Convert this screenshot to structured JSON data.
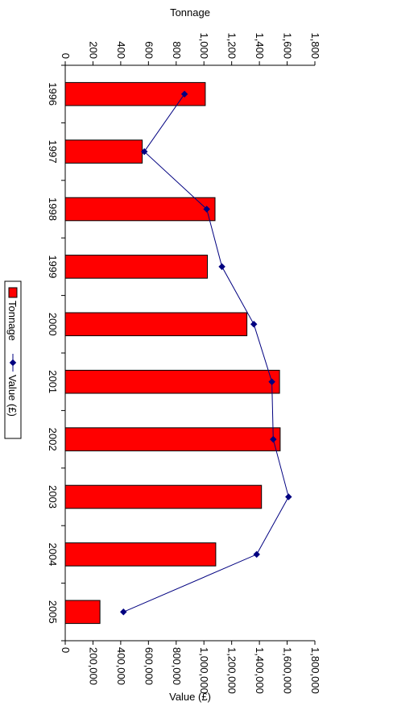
{
  "chart_data": {
    "type": "bar",
    "categories": [
      "1996",
      "1997",
      "1998",
      "1999",
      "2000",
      "2001",
      "2002",
      "2003",
      "2004",
      "2005"
    ],
    "series": [
      {
        "name": "Tonnage",
        "kind": "bar",
        "axis": "left",
        "color": "#ff0000",
        "values": [
          1010,
          555,
          1080,
          1025,
          1310,
          1545,
          1550,
          1415,
          1085,
          250
        ]
      },
      {
        "name": "Value (£)",
        "kind": "line",
        "axis": "right",
        "color": "#000080",
        "values": [
          860000,
          570000,
          1020000,
          1130000,
          1360000,
          1490000,
          1500000,
          1610000,
          1380000,
          420000
        ]
      }
    ],
    "left_axis": {
      "label": "Tonnage",
      "range": [
        0,
        1800
      ],
      "ticks": [
        "0",
        "200",
        "400",
        "600",
        "800",
        "1,000",
        "1,200",
        "1,400",
        "1,600",
        "1,800"
      ]
    },
    "right_axis": {
      "label": "Value (£)",
      "range": [
        0,
        1800000
      ],
      "ticks": [
        "0",
        "200,000",
        "400,000",
        "600,000",
        "800,000",
        "1,000,000",
        "1,200,000",
        "1,400,000",
        "1,600,000",
        "1,800,000"
      ]
    },
    "legend": {
      "position": "center",
      "entries": [
        "Tonnage",
        "Value (£)"
      ]
    },
    "grid": false,
    "orientation": "rotated-90-clockwise"
  }
}
